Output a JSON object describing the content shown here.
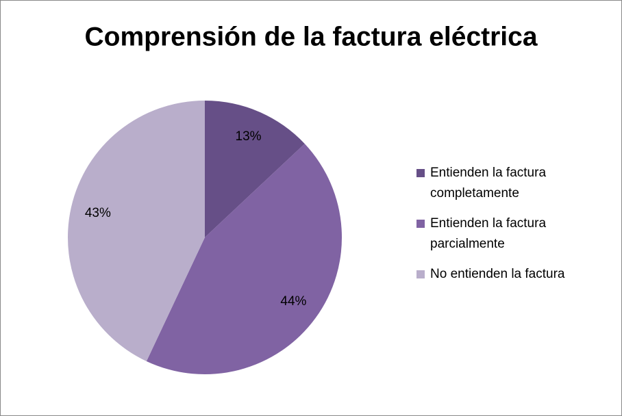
{
  "chart_data": {
    "type": "pie",
    "title": "Comprensión de la factura eléctrica",
    "categories": [
      "Entienden la factura completamente",
      "Entienden la factura parcialmente",
      "No entienden la factura"
    ],
    "values": [
      13,
      44,
      43
    ],
    "value_labels": [
      "13%",
      "44%",
      "43%"
    ],
    "colors": [
      "#664f87",
      "#8063a3",
      "#b9aecb"
    ],
    "legend": "right"
  }
}
